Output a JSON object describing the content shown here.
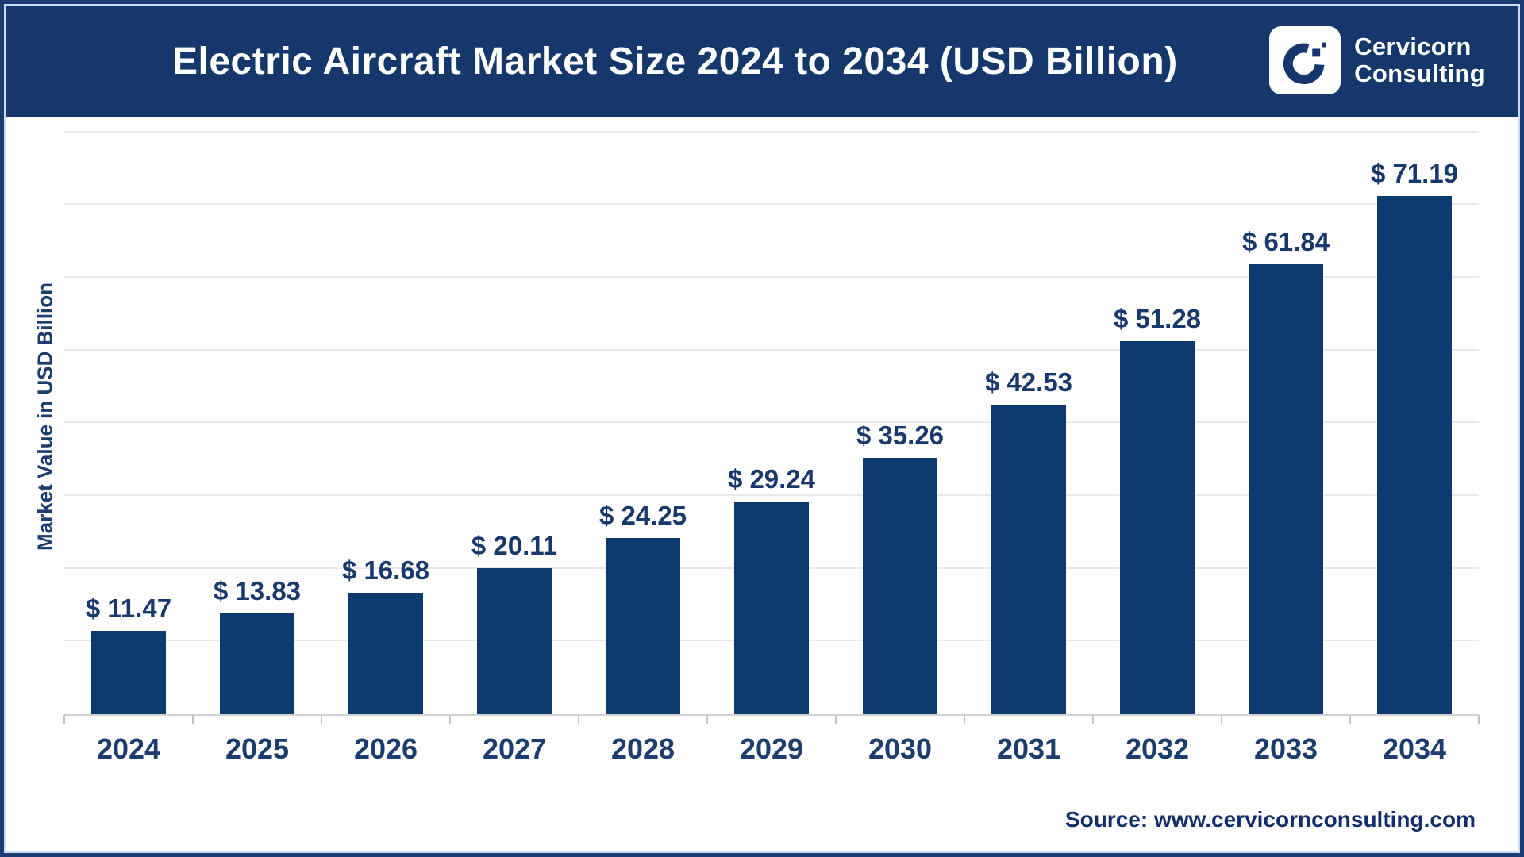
{
  "header": {
    "title": "Electric Aircraft Market Size 2024 to 2034 (USD Billion)",
    "brand": {
      "logo_icon": "cervicorn-c-mark",
      "name_line1": "Cervicorn",
      "name_line2": "Consulting"
    }
  },
  "chart_data": {
    "type": "bar",
    "title": "Electric Aircraft Market Size 2024 to 2034 (USD Billion)",
    "categories": [
      "2024",
      "2025",
      "2026",
      "2027",
      "2028",
      "2029",
      "2030",
      "2031",
      "2032",
      "2033",
      "2034"
    ],
    "values": [
      11.47,
      13.83,
      16.68,
      20.11,
      24.25,
      29.24,
      35.26,
      42.53,
      51.28,
      61.84,
      71.19
    ],
    "data_labels": [
      "$ 11.47",
      "$ 13.83",
      "$ 16.68",
      "$ 20.11",
      "$ 24.25",
      "$ 29.24",
      "$ 35.26",
      "$ 42.53",
      "$ 51.28",
      "$ 61.84",
      "$ 71.19"
    ],
    "xlabel": "",
    "ylabel": "Market Value in USD Billion",
    "ylim": [
      0,
      81.8
    ],
    "gridline_step": 10,
    "grid": "horizontal-only",
    "legend": "none",
    "y_tick_labels_visible": false,
    "bar_color": "#0d3b6f",
    "label_color": "#17396d"
  },
  "footer": {
    "source": "Source: www.cervicornconsulting.com"
  },
  "colors": {
    "header_bg": "#15376b",
    "frame_border": "#1c3b72",
    "inner_border": "#ccdcf0",
    "gridline": "#e9e9e9",
    "bar": "#0d3b6f",
    "text_navy": "#1c3d6f",
    "title_text": "#ffffff"
  }
}
